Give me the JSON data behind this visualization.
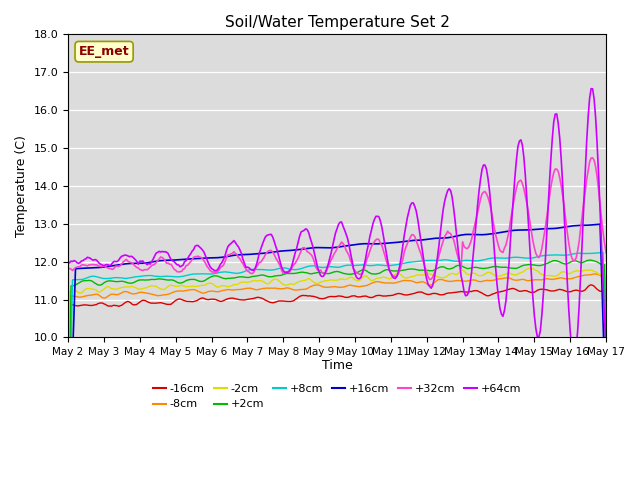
{
  "title": "Soil/Water Temperature Set 2",
  "xlabel": "Time",
  "ylabel": "Temperature (C)",
  "ylim": [
    10.0,
    18.0
  ],
  "yticks": [
    10.0,
    11.0,
    12.0,
    13.0,
    14.0,
    15.0,
    16.0,
    17.0,
    18.0
  ],
  "xtick_labels": [
    "May 2",
    "May 3",
    "May 4",
    "May 5",
    "May 6",
    "May 7",
    "May 8",
    "May 9",
    "May 10",
    "May 11",
    "May 12",
    "May 13",
    "May 14",
    "May 15",
    "May 16",
    "May 17"
  ],
  "station_label": "EE_met",
  "background_color": "#dcdcdc",
  "series": {
    "-16cm": {
      "color": "#dd0000",
      "lw": 1.0
    },
    "-8cm": {
      "color": "#ff8800",
      "lw": 1.0
    },
    "-2cm": {
      "color": "#dddd00",
      "lw": 1.0
    },
    "+2cm": {
      "color": "#00bb00",
      "lw": 1.0
    },
    "+8cm": {
      "color": "#00cccc",
      "lw": 1.0
    },
    "+16cm": {
      "color": "#0000cc",
      "lw": 1.2
    },
    "+32cm": {
      "color": "#ff44cc",
      "lw": 1.2
    },
    "+64cm": {
      "color": "#cc00ff",
      "lw": 1.2
    }
  },
  "legend_order": [
    "-16cm",
    "-8cm",
    "-2cm",
    "+2cm",
    "+8cm",
    "+16cm",
    "+32cm",
    "+64cm"
  ],
  "n_points": 361
}
